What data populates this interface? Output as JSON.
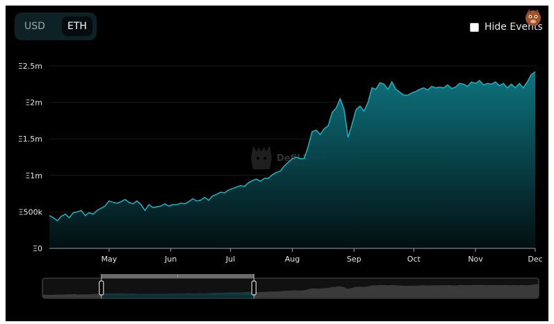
{
  "toggle": {
    "usd_label": "USD",
    "eth_label": "ETH",
    "selected": "ETH"
  },
  "hide_events": {
    "label": "Hide Events",
    "checked": false
  },
  "watermark": {
    "text": "DefiLlama"
  },
  "colors": {
    "background": "#000000",
    "line": "#14b8c8",
    "area_top": "#0f7985",
    "area_bottom": "#031012",
    "gridline": "#1a1a1a"
  },
  "chart_data": {
    "type": "area",
    "title": "",
    "xlabel": "",
    "ylabel": "",
    "ylim": [
      0,
      2500000
    ],
    "yticks": [
      {
        "value": 0,
        "label": "Ξ0"
      },
      {
        "value": 500000,
        "label": "Ξ500k"
      },
      {
        "value": 1000000,
        "label": "Ξ1m"
      },
      {
        "value": 1500000,
        "label": "Ξ1.5m"
      },
      {
        "value": 2000000,
        "label": "Ξ2m"
      },
      {
        "value": 2500000,
        "label": "Ξ2.5m"
      }
    ],
    "xticks": [
      {
        "value": 30,
        "label": "May"
      },
      {
        "value": 61,
        "label": "Jun"
      },
      {
        "value": 91,
        "label": "Jul"
      },
      {
        "value": 122,
        "label": "Aug"
      },
      {
        "value": 153,
        "label": "Sep"
      },
      {
        "value": 183,
        "label": "Oct"
      },
      {
        "value": 214,
        "label": "Nov"
      },
      {
        "value": 244,
        "label": "Dec"
      }
    ],
    "xlim": [
      0,
      244
    ],
    "grid": true,
    "series": [
      {
        "x": [
          0,
          2,
          4,
          6,
          8,
          10,
          12,
          14,
          16,
          18,
          20,
          22,
          24,
          26,
          28,
          30,
          32,
          34,
          36,
          38,
          40,
          42,
          44,
          46,
          48,
          50,
          52,
          54,
          56,
          58,
          60,
          62,
          64,
          66,
          68,
          70,
          72,
          74,
          76,
          78,
          80,
          82,
          84,
          86,
          88,
          90,
          92,
          94,
          96,
          98,
          100,
          102,
          104,
          106,
          108,
          110,
          112,
          114,
          116,
          118,
          120,
          122,
          124,
          126,
          128,
          130,
          132,
          134,
          136,
          138,
          140,
          142,
          144,
          146,
          148,
          150,
          152,
          154,
          156,
          158,
          160,
          162,
          164,
          166,
          168,
          170,
          172,
          174,
          176,
          178,
          180,
          182,
          184,
          186,
          188,
          190,
          192,
          194,
          196,
          198,
          200,
          202,
          204,
          206,
          208,
          210,
          212,
          214,
          216,
          218,
          220,
          222,
          224,
          226,
          228,
          230,
          232,
          234,
          236,
          238,
          240,
          242,
          244
        ],
        "values": [
          450000,
          420000,
          380000,
          440000,
          470000,
          420000,
          490000,
          500000,
          520000,
          450000,
          490000,
          470000,
          520000,
          550000,
          580000,
          650000,
          630000,
          620000,
          640000,
          670000,
          630000,
          610000,
          650000,
          600000,
          520000,
          600000,
          560000,
          570000,
          580000,
          610000,
          580000,
          600000,
          600000,
          620000,
          610000,
          640000,
          680000,
          650000,
          660000,
          700000,
          660000,
          720000,
          740000,
          770000,
          760000,
          800000,
          820000,
          840000,
          860000,
          850000,
          900000,
          930000,
          950000,
          920000,
          960000,
          960000,
          1010000,
          1040000,
          1060000,
          1130000,
          1180000,
          1230000,
          1250000,
          1230000,
          1230000,
          1400000,
          1600000,
          1620000,
          1560000,
          1640000,
          1680000,
          1860000,
          1920000,
          2050000,
          1900000,
          1520000,
          1700000,
          1900000,
          1950000,
          1880000,
          2000000,
          2200000,
          2180000,
          2270000,
          2250000,
          2180000,
          2280000,
          2180000,
          2140000,
          2100000,
          2100000,
          2130000,
          2150000,
          2180000,
          2200000,
          2170000,
          2220000,
          2200000,
          2210000,
          2200000,
          2240000,
          2190000,
          2210000,
          2260000,
          2250000,
          2220000,
          2280000,
          2260000,
          2300000,
          2240000,
          2260000,
          2250000,
          2280000,
          2230000,
          2260000,
          2200000,
          2250000,
          2200000,
          2260000,
          2200000,
          2280000,
          2380000,
          2420000
        ]
      }
    ]
  },
  "brush": {
    "selection": {
      "start": 29,
      "end": 104
    },
    "handle_glyph": "⦙"
  }
}
